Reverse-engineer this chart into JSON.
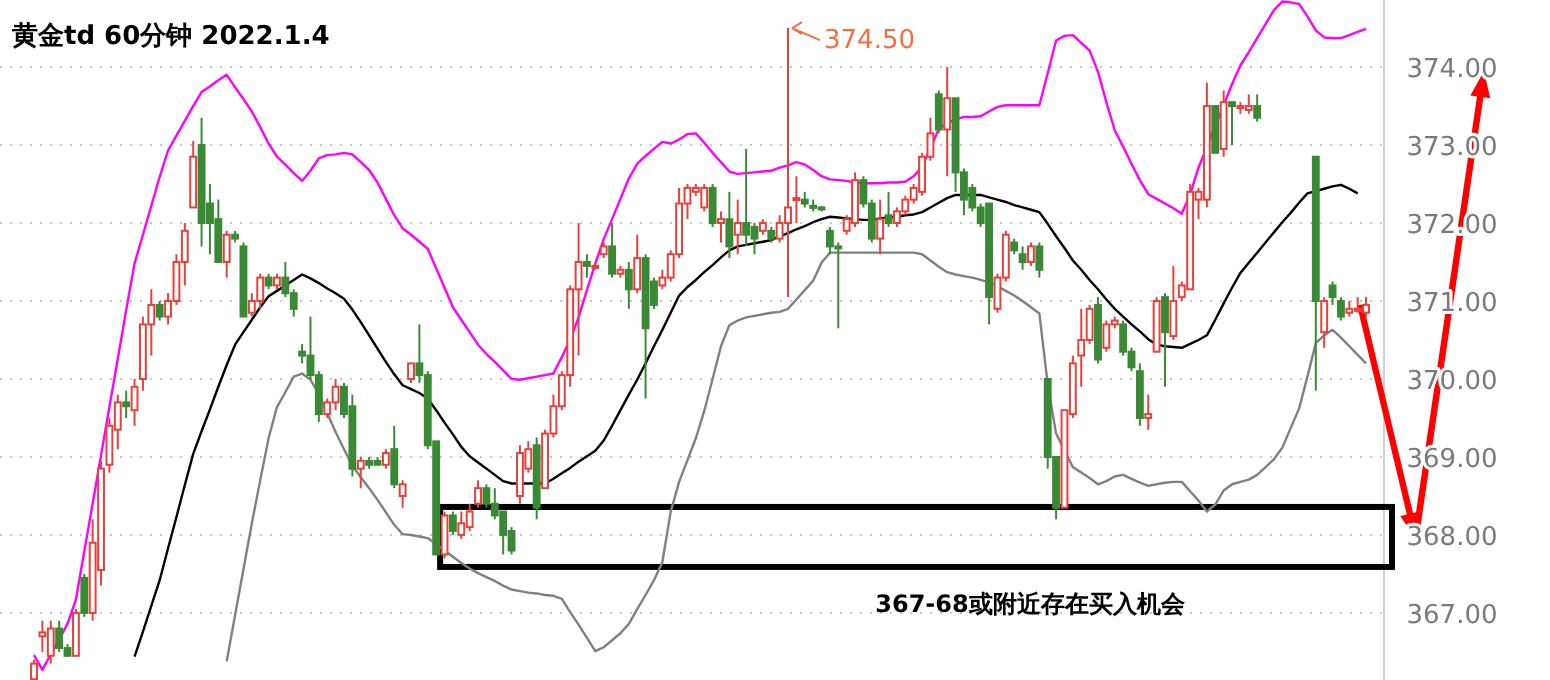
{
  "chart_data": {
    "type": "candlestick",
    "title": "黄金td 60分钟 2022.1.4",
    "categories": [
      null,
      null,
      null,
      null,
      null,
      null,
      null,
      null,
      null,
      null,
      null,
      null,
      null,
      null,
      null,
      null,
      null,
      null,
      null,
      null,
      null,
      null,
      null,
      null,
      null,
      null,
      null,
      null,
      null,
      null,
      null,
      null,
      null,
      null,
      null,
      null,
      null,
      null,
      null,
      null,
      null,
      null,
      null,
      null,
      null,
      null,
      null,
      null,
      null,
      null,
      null,
      null,
      null,
      null,
      null,
      null,
      null,
      null,
      null,
      null,
      null,
      null,
      null,
      null,
      null,
      null,
      null,
      null,
      null,
      null,
      null,
      null,
      null,
      null,
      null,
      null,
      null,
      null,
      null,
      null,
      null,
      null,
      null,
      null,
      null,
      null,
      null,
      null,
      null,
      null,
      null,
      null,
      null,
      null,
      null,
      null,
      null,
      null,
      null,
      null,
      null,
      null,
      null,
      null,
      null,
      null,
      null,
      null,
      null,
      null,
      null,
      null,
      null,
      null,
      null,
      null,
      null,
      null,
      null,
      null,
      null,
      null,
      null,
      null,
      null,
      null,
      null,
      null,
      null,
      null,
      null,
      null,
      null,
      null,
      null,
      null,
      null,
      null,
      null,
      null,
      null,
      null,
      null,
      null,
      null,
      null,
      null,
      null,
      null,
      null,
      null,
      null,
      null,
      null,
      null,
      null,
      null,
      null,
      null,
      null
    ],
    "ohlc": [
      [
        366.15,
        366.4,
        366.14,
        366.35
      ],
      [
        366.7,
        366.9,
        366.5,
        366.75
      ],
      [
        366.45,
        366.9,
        366.35,
        366.8
      ],
      [
        366.8,
        366.9,
        366.5,
        366.55
      ],
      [
        366.55,
        366.6,
        366.45,
        366.45
      ],
      [
        366.45,
        367.05,
        366.45,
        367.0
      ],
      [
        367.45,
        367.5,
        366.95,
        367.0
      ],
      [
        367.0,
        368.2,
        366.9,
        367.9
      ],
      [
        367.55,
        368.95,
        367.35,
        368.85
      ],
      [
        368.9,
        369.5,
        368.8,
        369.4
      ],
      [
        369.35,
        369.8,
        369.1,
        369.7
      ],
      [
        369.7,
        369.85,
        369.5,
        369.65
      ],
      [
        369.6,
        370.0,
        369.4,
        369.9
      ],
      [
        370.0,
        370.8,
        369.85,
        370.7
      ],
      [
        370.7,
        371.15,
        370.3,
        370.95
      ],
      [
        370.95,
        371.0,
        370.75,
        370.8
      ],
      [
        370.8,
        371.1,
        370.7,
        371.0
      ],
      [
        371.0,
        371.6,
        370.95,
        371.5
      ],
      [
        371.5,
        372.0,
        371.2,
        371.9
      ],
      [
        372.2,
        373.05,
        372.2,
        372.85
      ],
      [
        373.0,
        373.35,
        371.7,
        372.0
      ],
      [
        372.25,
        372.5,
        371.6,
        372.0
      ],
      [
        372.05,
        372.3,
        371.5,
        371.5
      ],
      [
        371.5,
        371.9,
        371.3,
        371.85
      ],
      [
        371.85,
        371.9,
        371.75,
        371.8
      ],
      [
        371.7,
        371.75,
        370.8,
        370.8
      ],
      [
        370.85,
        371.1,
        370.8,
        371.0
      ],
      [
        371.0,
        371.35,
        370.9,
        371.3
      ],
      [
        371.3,
        371.35,
        371.15,
        371.2
      ],
      [
        371.2,
        371.35,
        371.15,
        371.3
      ],
      [
        371.3,
        371.5,
        371.05,
        371.1
      ],
      [
        371.1,
        371.15,
        370.8,
        370.9
      ],
      [
        370.35,
        370.45,
        370.2,
        370.3
      ],
      [
        370.3,
        370.8,
        370.0,
        370.05
      ],
      [
        370.05,
        370.1,
        369.45,
        369.55
      ],
      [
        369.55,
        369.75,
        369.5,
        369.7
      ],
      [
        369.7,
        370.0,
        369.6,
        369.9
      ],
      [
        369.9,
        369.95,
        369.5,
        369.55
      ],
      [
        369.65,
        369.8,
        368.75,
        368.85
      ],
      [
        368.85,
        369.0,
        368.6,
        368.95
      ],
      [
        368.95,
        369.0,
        368.85,
        368.9
      ],
      [
        368.95,
        369.0,
        368.9,
        368.9
      ],
      [
        368.9,
        369.1,
        368.85,
        369.05
      ],
      [
        369.1,
        369.4,
        368.6,
        368.65
      ],
      [
        368.5,
        368.7,
        368.35,
        368.65
      ],
      [
        370.0,
        370.2,
        369.95,
        370.2
      ],
      [
        370.2,
        370.7,
        369.95,
        370.05
      ],
      [
        370.05,
        370.1,
        369.1,
        369.15
      ],
      [
        369.2,
        369.2,
        367.75,
        367.75
      ],
      [
        367.75,
        368.3,
        367.7,
        368.25
      ],
      [
        368.25,
        368.3,
        368.0,
        368.05
      ],
      [
        368.0,
        368.3,
        367.95,
        368.15
      ],
      [
        368.1,
        368.4,
        368.05,
        368.3
      ],
      [
        368.4,
        368.7,
        368.35,
        368.6
      ],
      [
        368.6,
        368.65,
        368.35,
        368.4
      ],
      [
        368.4,
        368.6,
        368.2,
        368.25
      ],
      [
        368.3,
        368.3,
        367.75,
        368.0
      ],
      [
        368.05,
        368.1,
        367.75,
        367.8
      ],
      [
        368.5,
        369.15,
        368.4,
        369.05
      ],
      [
        368.85,
        369.2,
        368.8,
        369.1
      ],
      [
        369.15,
        369.25,
        368.2,
        368.35
      ],
      [
        368.6,
        369.35,
        368.6,
        369.3
      ],
      [
        369.3,
        369.8,
        369.25,
        369.65
      ],
      [
        369.65,
        370.1,
        369.6,
        370.05
      ],
      [
        370.05,
        371.2,
        369.9,
        371.15
      ],
      [
        371.15,
        372.0,
        370.3,
        371.5
      ],
      [
        371.5,
        371.6,
        371.3,
        371.45
      ],
      [
        371.45,
        371.5,
        371.4,
        371.45
      ],
      [
        371.6,
        371.75,
        371.55,
        371.7
      ],
      [
        371.7,
        372.0,
        371.3,
        371.35
      ],
      [
        371.35,
        371.45,
        371.3,
        371.4
      ],
      [
        371.4,
        371.5,
        370.9,
        371.15
      ],
      [
        371.15,
        371.85,
        371.1,
        371.55
      ],
      [
        371.55,
        371.6,
        369.75,
        370.65
      ],
      [
        371.25,
        371.3,
        370.9,
        370.95
      ],
      [
        371.2,
        371.4,
        371.15,
        371.3
      ],
      [
        371.3,
        371.65,
        371.25,
        371.6
      ],
      [
        371.6,
        372.45,
        371.55,
        372.25
      ],
      [
        372.25,
        372.5,
        372.05,
        372.45
      ],
      [
        372.4,
        372.5,
        372.35,
        372.45
      ],
      [
        372.2,
        372.5,
        372.15,
        372.45
      ],
      [
        372.45,
        372.5,
        371.95,
        372.0
      ],
      [
        372.0,
        372.15,
        371.75,
        372.05
      ],
      [
        372.05,
        372.4,
        371.55,
        371.7
      ],
      [
        371.85,
        372.3,
        371.6,
        372.0
      ],
      [
        372.0,
        372.95,
        371.7,
        371.85
      ],
      [
        371.95,
        372.0,
        371.6,
        371.8
      ],
      [
        371.9,
        372.05,
        371.85,
        372.0
      ],
      [
        371.9,
        371.95,
        371.75,
        371.8
      ],
      [
        371.8,
        372.1,
        371.75,
        372.0
      ],
      [
        372.0,
        374.5,
        371.05,
        372.2
      ],
      [
        372.3,
        372.6,
        372.0,
        372.32
      ],
      [
        372.3,
        372.4,
        372.2,
        372.25
      ],
      [
        372.22,
        372.3,
        372.15,
        372.2
      ],
      [
        372.2,
        372.22,
        372.15,
        372.18
      ],
      [
        371.9,
        371.95,
        371.6,
        371.7
      ],
      [
        371.7,
        371.75,
        370.65,
        371.68
      ],
      [
        371.9,
        372.1,
        371.85,
        372.05
      ],
      [
        372.0,
        372.65,
        371.95,
        372.55
      ],
      [
        372.55,
        372.6,
        372.2,
        372.25
      ],
      [
        372.25,
        372.3,
        371.75,
        371.8
      ],
      [
        371.8,
        372.3,
        371.6,
        372.05
      ],
      [
        372.1,
        372.4,
        371.95,
        372.0
      ],
      [
        372.0,
        372.2,
        371.95,
        372.15
      ],
      [
        372.15,
        372.35,
        372.1,
        372.3
      ],
      [
        372.3,
        372.5,
        372.25,
        372.45
      ],
      [
        372.4,
        372.9,
        372.35,
        372.85
      ],
      [
        372.85,
        373.35,
        372.8,
        373.15
      ],
      [
        373.65,
        373.7,
        373.15,
        373.2
      ],
      [
        373.2,
        374.0,
        372.6,
        373.6
      ],
      [
        373.6,
        373.6,
        372.4,
        372.65
      ],
      [
        372.65,
        372.7,
        372.1,
        372.3
      ],
      [
        372.45,
        372.5,
        372.15,
        372.2
      ],
      [
        372.2,
        372.25,
        371.95,
        372.0
      ],
      [
        372.25,
        372.25,
        370.7,
        371.05
      ],
      [
        370.9,
        371.35,
        370.85,
        371.3
      ],
      [
        371.3,
        371.9,
        371.25,
        371.85
      ],
      [
        371.75,
        371.8,
        371.6,
        371.65
      ],
      [
        371.6,
        371.7,
        371.4,
        371.5
      ],
      [
        371.5,
        371.75,
        371.45,
        371.7
      ],
      [
        371.7,
        371.75,
        371.3,
        371.4
      ],
      [
        370.0,
        370.0,
        368.85,
        369.0
      ],
      [
        369.0,
        369.0,
        368.2,
        368.35
      ],
      [
        368.35,
        369.6,
        368.35,
        369.6
      ],
      [
        369.55,
        370.3,
        369.5,
        370.2
      ],
      [
        370.3,
        370.9,
        369.9,
        370.5
      ],
      [
        370.5,
        370.95,
        370.45,
        370.9
      ],
      [
        370.95,
        371.05,
        370.2,
        370.25
      ],
      [
        370.4,
        370.75,
        370.35,
        370.7
      ],
      [
        370.7,
        370.8,
        370.65,
        370.75
      ],
      [
        370.7,
        370.75,
        370.3,
        370.35
      ],
      [
        370.35,
        370.4,
        370.1,
        370.15
      ],
      [
        370.1,
        370.2,
        369.4,
        369.5
      ],
      [
        369.5,
        369.8,
        369.35,
        369.55
      ],
      [
        370.35,
        371.05,
        370.35,
        371.0
      ],
      [
        371.05,
        371.1,
        369.9,
        370.6
      ],
      [
        370.55,
        371.45,
        370.5,
        371.0
      ],
      [
        371.05,
        371.25,
        371.0,
        371.2
      ],
      [
        371.15,
        372.5,
        371.15,
        372.4
      ],
      [
        372.3,
        372.45,
        372.05,
        372.4
      ],
      [
        372.3,
        373.8,
        372.2,
        373.5
      ],
      [
        373.5,
        373.5,
        372.9,
        372.9
      ],
      [
        372.95,
        373.7,
        372.85,
        373.55
      ],
      [
        373.55,
        373.55,
        373.0,
        373.5
      ],
      [
        373.5,
        373.55,
        373.4,
        373.5
      ],
      [
        373.45,
        373.65,
        373.4,
        373.5
      ],
      [
        373.5,
        373.65,
        373.3,
        373.35
      ],
      null,
      null,
      null,
      null,
      null,
      null,
      [
        372.85,
        372.85,
        369.85,
        371.0
      ],
      [
        370.6,
        371.05,
        370.4,
        371.0
      ],
      [
        371.2,
        371.25,
        370.95,
        371.05
      ],
      [
        371.0,
        371.05,
        370.75,
        370.8
      ],
      [
        370.85,
        371.0,
        370.8,
        370.9
      ],
      [
        370.9,
        371.05,
        370.85,
        370.9
      ],
      [
        370.85,
        371.05,
        370.8,
        370.95
      ]
    ],
    "series": [
      {
        "type": "line",
        "color": "#ff00ff",
        "values": [
          366.46,
          366.27,
          366.47,
          366.66,
          366.86,
          367.17,
          367.79,
          368.4,
          369.02,
          369.64,
          370.26,
          370.88,
          371.48,
          371.85,
          372.22,
          372.59,
          372.93,
          373.12,
          373.31,
          373.5,
          373.68,
          373.75,
          373.83,
          373.9,
          373.74,
          373.59,
          373.43,
          373.23,
          373.02,
          372.85,
          372.75,
          372.64,
          372.54,
          372.67,
          372.83,
          372.87,
          372.88,
          372.9,
          372.88,
          372.78,
          372.68,
          372.52,
          372.31,
          372.1,
          371.93,
          371.85,
          371.76,
          371.67,
          371.42,
          371.17,
          370.92,
          370.76,
          370.6,
          370.44,
          370.32,
          370.22,
          370.11,
          370.0,
          369.99,
          370.01,
          370.03,
          370.05,
          370.07,
          370.28,
          370.5,
          370.79,
          371.14,
          371.48,
          371.79,
          372.05,
          372.31,
          372.57,
          372.76,
          372.86,
          372.95,
          373.04,
          373.02,
          373.07,
          373.14,
          373.15,
          373.03,
          372.9,
          372.78,
          372.66,
          372.63,
          372.64,
          372.65,
          372.66,
          372.67,
          372.71,
          372.74,
          372.78,
          372.75,
          372.68,
          372.6,
          372.56,
          372.55,
          372.54,
          372.52,
          372.51,
          372.51,
          372.51,
          372.52,
          372.52,
          372.53,
          372.6,
          372.72,
          372.96,
          373.21,
          373.28,
          373.33,
          373.36,
          373.36,
          373.37,
          373.43,
          373.49,
          373.51,
          373.51,
          373.51,
          373.51,
          373.51,
          373.92,
          374.34,
          374.4,
          374.41,
          374.31,
          374.21,
          373.94,
          373.55,
          373.19,
          372.98,
          372.76,
          372.55,
          372.37,
          372.31,
          372.25,
          372.19,
          372.12,
          372.37,
          372.71,
          null,
          null,
          null,
          373.78,
          374.02,
          374.19,
          374.37,
          374.55,
          374.73,
          374.84,
          374.83,
          374.81,
          374.65,
          374.47,
          374.38,
          374.37,
          374.37,
          374.41,
          374.45,
          374.49
        ]
      },
      {
        "type": "line",
        "color": "#000000",
        "values": [
          null,
          null,
          null,
          null,
          null,
          null,
          null,
          null,
          null,
          null,
          null,
          null,
          366.44,
          366.76,
          367.09,
          367.42,
          367.83,
          368.23,
          368.64,
          369.04,
          369.33,
          369.61,
          369.9,
          370.18,
          370.44,
          370.6,
          370.76,
          370.92,
          371.06,
          371.13,
          371.2,
          371.27,
          371.34,
          371.29,
          371.23,
          371.16,
          371.1,
          371.03,
          370.89,
          370.73,
          370.56,
          370.39,
          370.22,
          370.06,
          369.92,
          369.87,
          369.82,
          369.75,
          369.6,
          369.44,
          369.29,
          369.13,
          369.01,
          368.93,
          368.85,
          368.77,
          368.69,
          368.66,
          368.66,
          368.66,
          368.66,
          368.66,
          368.72,
          368.79,
          368.86,
          368.94,
          369.01,
          369.08,
          369.21,
          369.4,
          369.6,
          369.8,
          369.99,
          370.2,
          370.42,
          370.63,
          370.85,
          371.07,
          371.18,
          371.27,
          371.37,
          371.46,
          371.56,
          371.65,
          371.7,
          371.72,
          371.74,
          371.76,
          371.78,
          371.83,
          371.87,
          371.92,
          371.96,
          372.01,
          372.05,
          372.08,
          372.07,
          372.06,
          372.05,
          372.04,
          372.04,
          372.06,
          372.07,
          372.08,
          372.1,
          372.11,
          372.14,
          372.2,
          372.26,
          372.32,
          372.36,
          372.36,
          372.36,
          372.36,
          372.33,
          372.3,
          372.27,
          372.23,
          372.2,
          372.17,
          372.14,
          371.99,
          371.83,
          371.68,
          371.52,
          371.4,
          371.27,
          371.15,
          371.02,
          370.9,
          370.8,
          370.7,
          370.61,
          370.51,
          370.44,
          370.42,
          370.41,
          370.4,
          370.45,
          370.5,
          370.56,
          370.76,
          370.97,
          371.17,
          371.36,
          371.49,
          371.62,
          371.75,
          371.88,
          372.01,
          372.13,
          372.26,
          372.38,
          372.41,
          372.44,
          372.47,
          372.49,
          372.44,
          372.38,
          null
        ]
      },
      {
        "type": "line",
        "color": "#808080",
        "values": [
          null,
          null,
          null,
          null,
          null,
          null,
          null,
          null,
          null,
          null,
          null,
          null,
          null,
          null,
          null,
          null,
          null,
          null,
          null,
          null,
          null,
          null,
          null,
          366.38,
          366.97,
          367.56,
          368.15,
          368.7,
          369.24,
          369.64,
          369.83,
          370.03,
          370.07,
          369.99,
          369.81,
          369.56,
          369.32,
          369.1,
          368.89,
          368.74,
          368.6,
          368.45,
          368.29,
          368.13,
          368.01,
          368.0,
          367.98,
          367.96,
          367.88,
          367.8,
          367.72,
          367.64,
          367.57,
          367.51,
          367.46,
          367.41,
          367.35,
          367.3,
          367.28,
          367.26,
          367.25,
          367.23,
          367.22,
          367.18,
          367.01,
          366.85,
          366.68,
          366.51,
          366.56,
          366.65,
          366.74,
          366.86,
          367.05,
          367.23,
          367.42,
          367.65,
          368.3,
          368.68,
          368.96,
          369.24,
          369.59,
          370.0,
          370.42,
          370.69,
          370.75,
          370.79,
          370.81,
          370.83,
          370.85,
          370.86,
          370.9,
          371.02,
          371.14,
          371.26,
          371.49,
          371.62,
          371.62,
          371.62,
          371.62,
          371.62,
          371.62,
          371.62,
          371.62,
          371.62,
          371.62,
          371.62,
          371.6,
          371.52,
          371.44,
          371.37,
          371.34,
          371.32,
          371.3,
          371.27,
          371.24,
          371.19,
          371.13,
          371.07,
          371.0,
          370.92,
          370.84,
          369.93,
          369.3,
          369.08,
          368.87,
          368.8,
          368.73,
          368.65,
          368.69,
          368.75,
          368.77,
          368.72,
          368.67,
          368.63,
          368.65,
          368.67,
          368.68,
          368.68,
          368.56,
          368.44,
          368.3,
          368.39,
          368.57,
          368.65,
          368.68,
          368.71,
          368.77,
          368.87,
          368.97,
          369.12,
          369.37,
          369.62,
          370.03,
          370.46,
          370.56,
          370.63,
          370.53,
          370.42,
          370.31,
          370.2
        ]
      }
    ],
    "ylim": [
      366.14,
      374.86
    ],
    "yticks": [
      {
        "value": 367,
        "label": "367.00"
      },
      {
        "value": 368,
        "label": "368.00"
      },
      {
        "value": 369,
        "label": "369.00"
      },
      {
        "value": 370,
        "label": "370.00"
      },
      {
        "value": 371,
        "label": "371.00"
      },
      {
        "value": 372,
        "label": "372.00"
      },
      {
        "value": 373,
        "label": "373.00"
      },
      {
        "value": 374,
        "label": "374.00"
      }
    ],
    "grid": "y",
    "tick_labels": "y",
    "annotations": [
      "374.50",
      "367-68或附近存在买入机会"
    ]
  }
}
